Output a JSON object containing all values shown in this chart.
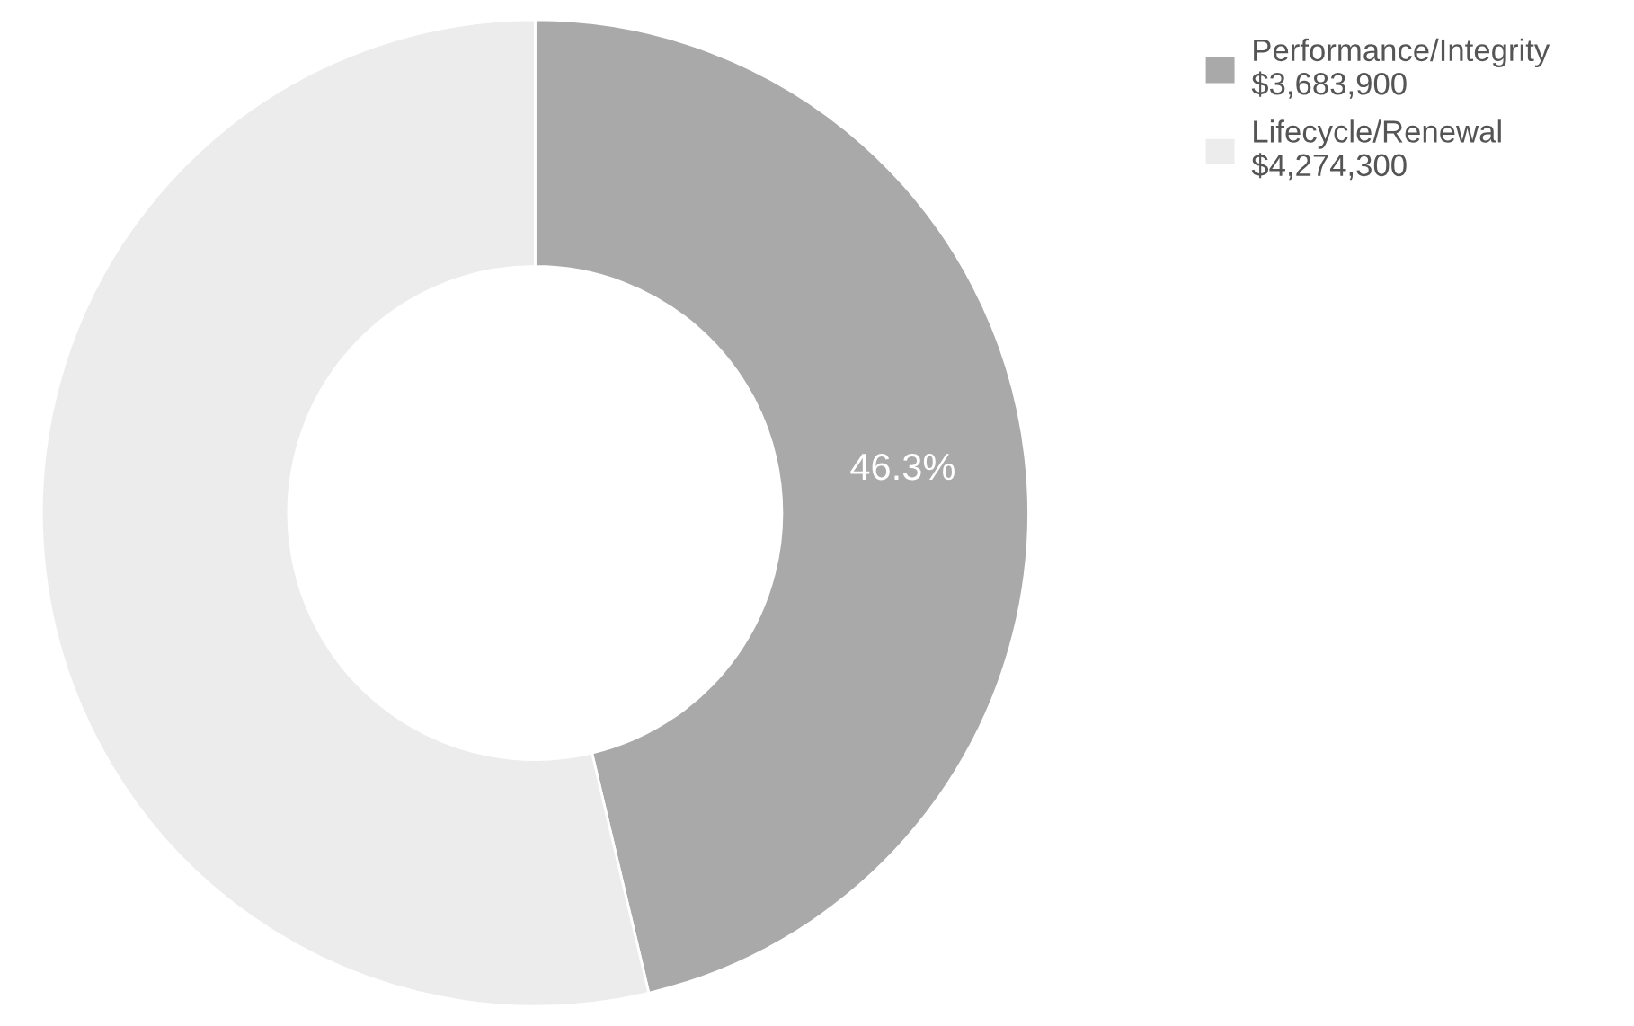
{
  "chart_data": {
    "type": "donut",
    "categories": [
      "Performance/Integrity\n$3,683,900",
      "Lifecycle/Renewal\n$4,274,300"
    ],
    "values": [
      46.3,
      53.7
    ],
    "colors": [
      "#a9a9a9",
      "#ececec"
    ],
    "value_labels": [
      "46.3%",
      null
    ],
    "legend": "top right"
  }
}
